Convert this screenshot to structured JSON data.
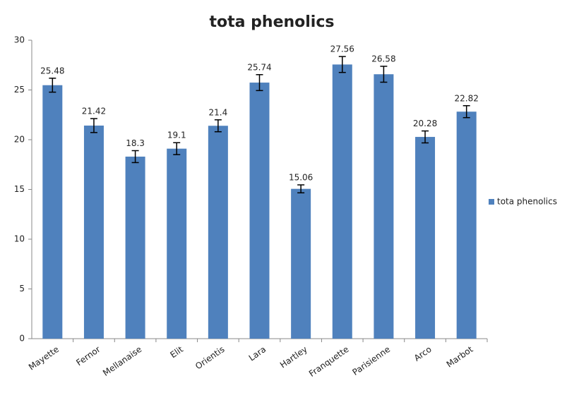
{
  "chart_data": {
    "type": "bar",
    "title": "tota phenolics",
    "categories": [
      "Mayette",
      "Fernor",
      "Mellanaise",
      "Elit",
      "Orientis",
      "Lara",
      "Hartley",
      "Franquette",
      "Parisienne",
      "Arco",
      "Marbot"
    ],
    "series": [
      {
        "name": "tota phenolics",
        "color": "#4f81bd",
        "values": [
          25.48,
          21.42,
          18.3,
          19.1,
          21.4,
          25.74,
          15.06,
          27.56,
          26.58,
          20.28,
          22.82
        ],
        "errors": [
          0.7,
          0.7,
          0.6,
          0.6,
          0.6,
          0.8,
          0.4,
          0.8,
          0.8,
          0.6,
          0.6
        ]
      }
    ],
    "ylim": [
      0,
      30
    ],
    "yticks": [
      0,
      5,
      10,
      15,
      20,
      25,
      30
    ],
    "grid": false,
    "legend": "right"
  }
}
